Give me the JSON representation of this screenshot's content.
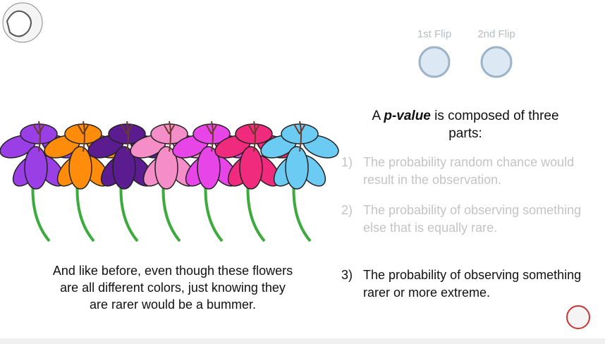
{
  "coin_flips": [
    "1st Flip",
    "2nd Flip"
  ],
  "heading": {
    "before": "A ",
    "emphasis": "p-value",
    "after": " is composed of three parts:"
  },
  "parts": [
    {
      "number": "1)",
      "text": "The probability random chance would result in the observation."
    },
    {
      "number": "2)",
      "text": "The probability of observing something else that is equally rare."
    },
    {
      "number": "3)",
      "text": "The probability of observing something rarer or more extreme."
    }
  ],
  "caption": "And like before, even though these flowers are all different colors, just knowing they are rarer would be a bummer."
}
